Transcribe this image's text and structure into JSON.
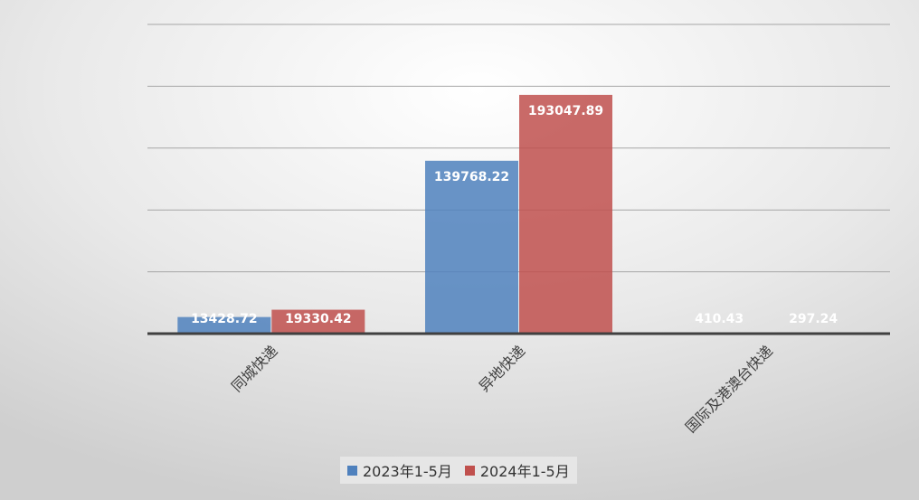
{
  "chart_data": {
    "type": "bar",
    "categories": [
      "同城快递",
      "异地快递",
      "国际及港澳台快递"
    ],
    "series": [
      {
        "name": "2023年1-5月",
        "values": [
          13428.72,
          139768.22,
          410.43
        ],
        "color": "#4F81BD"
      },
      {
        "name": "2024年1-5月",
        "values": [
          19330.42,
          193047.89,
          297.24
        ],
        "color": "#C0504D"
      }
    ],
    "ylim": [
      0,
      250000
    ],
    "grid": true,
    "legend_position": "bottom"
  }
}
